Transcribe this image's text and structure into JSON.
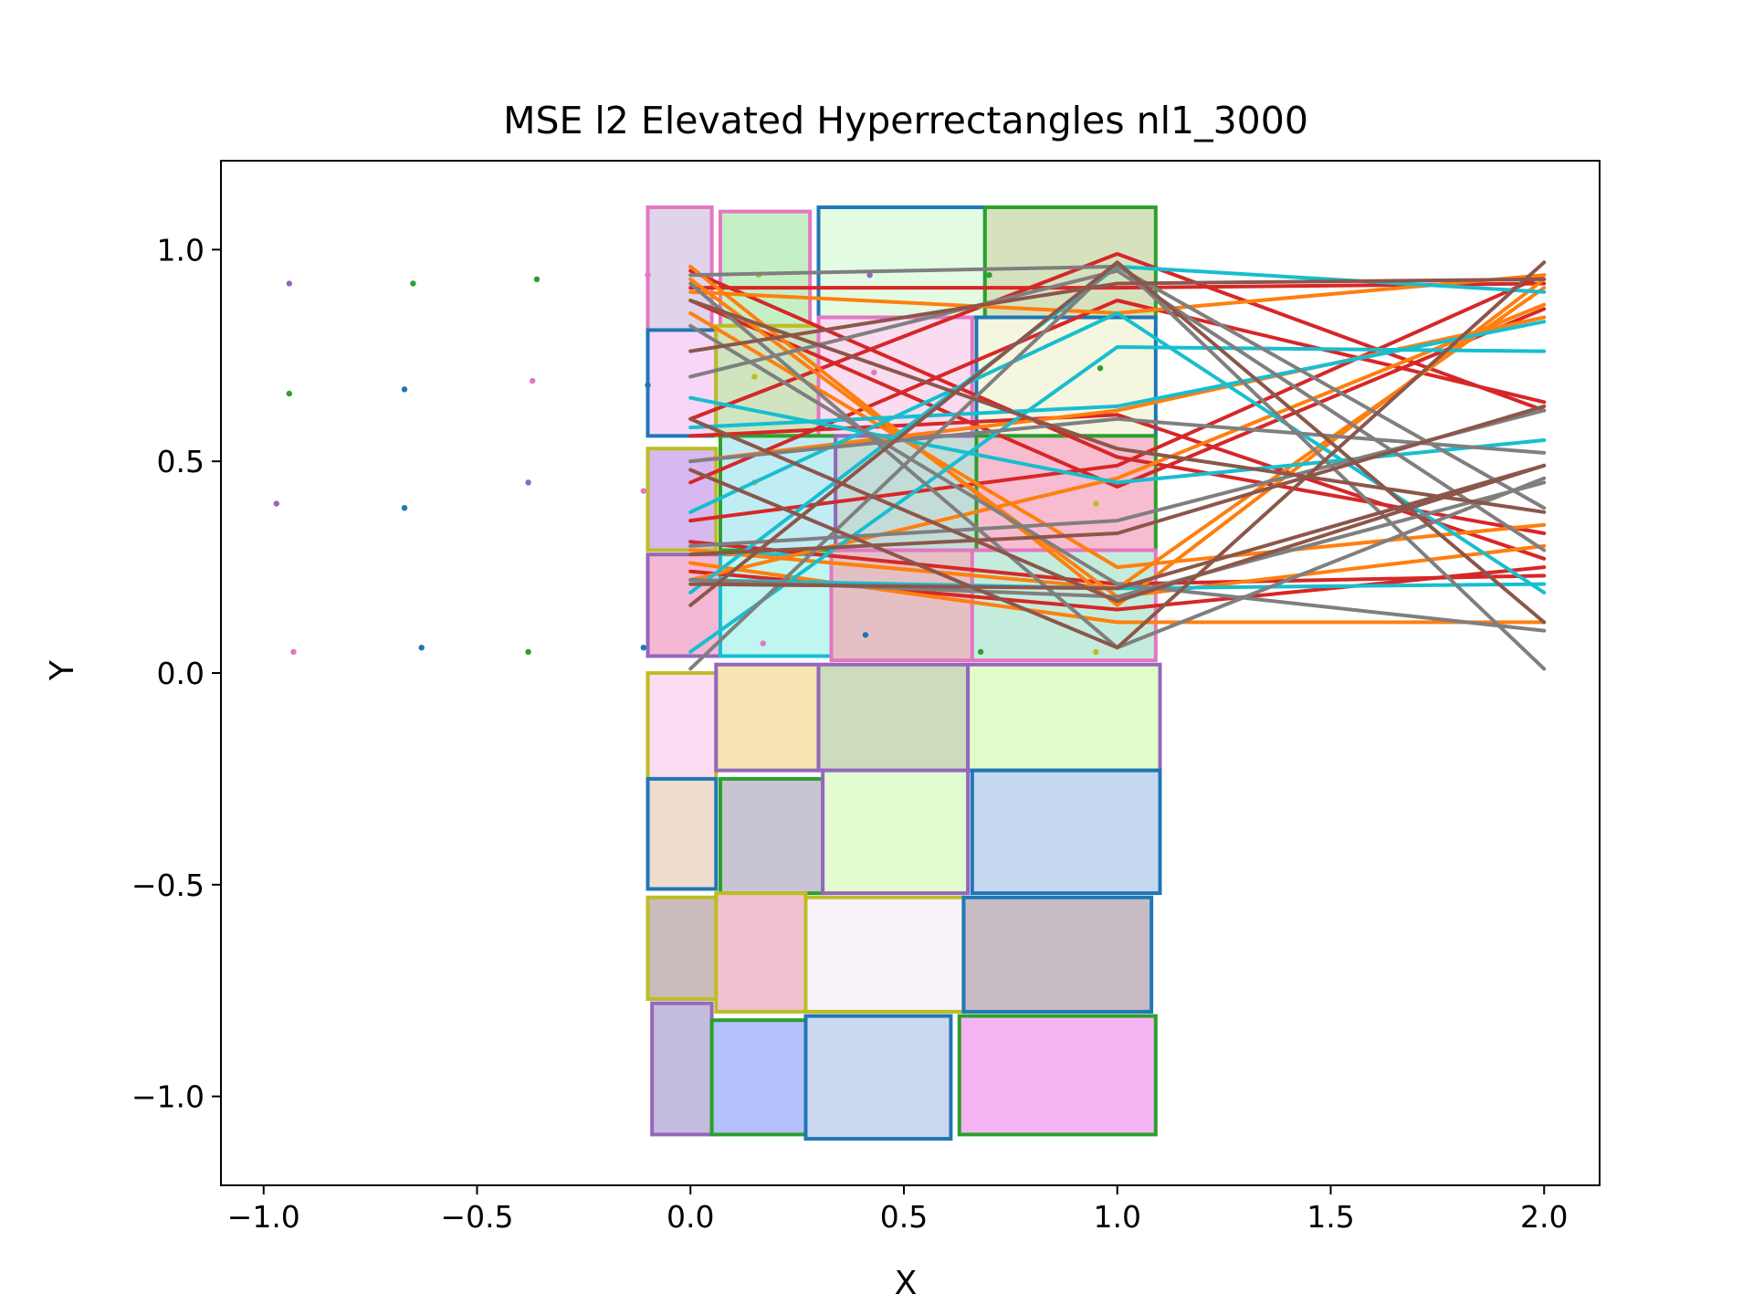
{
  "chart_data": {
    "type": "line",
    "title": "MSE l2 Elevated Hyperrectangles nl1_3000",
    "xlabel": "X",
    "ylabel": "Y",
    "xlim": [
      -1.1,
      2.13
    ],
    "ylim": [
      -1.21,
      1.21
    ],
    "x_ticks": [
      -1.0,
      -0.5,
      0.0,
      0.5,
      1.0,
      1.5,
      2.0
    ],
    "x_tick_labels": [
      "−1.0",
      "−0.5",
      "0.0",
      "0.5",
      "1.0",
      "1.5",
      "2.0"
    ],
    "y_ticks": [
      -1.0,
      -0.5,
      0.0,
      0.5,
      1.0
    ],
    "y_tick_labels": [
      "−1.0",
      "−0.5",
      "0.0",
      "0.5",
      "1.0"
    ],
    "grid": false,
    "legend": "none",
    "colors": {
      "blue": "#1f77b4",
      "orange": "#ff7f0e",
      "green": "#2ca02c",
      "red": "#d62728",
      "purple": "#9467bd",
      "brown": "#8c564b",
      "pink": "#e377c2",
      "gray": "#7f7f7f",
      "olive": "#bcbd22",
      "cyan": "#17becf"
    },
    "rectangles": [
      {
        "x0": -0.1,
        "x1": 0.05,
        "y0": 0.81,
        "y1": 1.1,
        "fill": "#e0d4ea",
        "edge": "pink"
      },
      {
        "x0": 0.07,
        "x1": 0.28,
        "y0": 0.82,
        "y1": 1.09,
        "fill": "#c5f0c5",
        "edge": "pink"
      },
      {
        "x0": 0.3,
        "x1": 0.69,
        "y0": 0.84,
        "y1": 1.1,
        "fill": "#e2fbe2",
        "edge": "blue"
      },
      {
        "x0": 0.69,
        "x1": 1.09,
        "y0": 0.84,
        "y1": 1.1,
        "fill": "#d6e2be",
        "edge": "green"
      },
      {
        "x0": -0.1,
        "x1": 0.06,
        "y0": 0.56,
        "y1": 0.81,
        "fill": "#f8d6f8",
        "edge": "blue"
      },
      {
        "x0": 0.06,
        "x1": 0.3,
        "y0": 0.56,
        "y1": 0.82,
        "fill": "#d0e4c0",
        "edge": "olive"
      },
      {
        "x0": 0.3,
        "x1": 0.66,
        "y0": 0.56,
        "y1": 0.84,
        "fill": "#f9dcf0",
        "edge": "pink"
      },
      {
        "x0": 0.67,
        "x1": 1.09,
        "y0": 0.56,
        "y1": 0.84,
        "fill": "#f4f6e0",
        "edge": "blue"
      },
      {
        "x0": -0.1,
        "x1": 0.06,
        "y0": 0.29,
        "y1": 0.53,
        "fill": "#d8b8f0",
        "edge": "olive"
      },
      {
        "x0": 0.07,
        "x1": 0.34,
        "y0": 0.29,
        "y1": 0.56,
        "fill": "#c0ecf4",
        "edge": "green"
      },
      {
        "x0": 0.34,
        "x1": 0.67,
        "y0": 0.29,
        "y1": 0.56,
        "fill": "#c4dcd8",
        "edge": "purple"
      },
      {
        "x0": 0.67,
        "x1": 1.09,
        "y0": 0.29,
        "y1": 0.56,
        "fill": "#f8bcd0",
        "edge": "green"
      },
      {
        "x0": -0.1,
        "x1": 0.07,
        "y0": 0.04,
        "y1": 0.28,
        "fill": "#f4b8d4",
        "edge": "purple"
      },
      {
        "x0": 0.07,
        "x1": 0.33,
        "y0": 0.04,
        "y1": 0.28,
        "fill": "#c0f6f0",
        "edge": "cyan"
      },
      {
        "x0": 0.33,
        "x1": 0.66,
        "y0": 0.03,
        "y1": 0.29,
        "fill": "#e4c0c4",
        "edge": "pink"
      },
      {
        "x0": 0.66,
        "x1": 1.09,
        "y0": 0.03,
        "y1": 0.29,
        "fill": "#c4ecdc",
        "edge": "pink"
      },
      {
        "x0": -0.1,
        "x1": 0.06,
        "y0": -0.25,
        "y1": 0.0,
        "fill": "#fcdcf2",
        "edge": "olive"
      },
      {
        "x0": 0.06,
        "x1": 0.3,
        "y0": -0.23,
        "y1": 0.02,
        "fill": "#f6e4b2",
        "edge": "purple"
      },
      {
        "x0": 0.3,
        "x1": 0.65,
        "y0": -0.23,
        "y1": 0.02,
        "fill": "#ccdcbc",
        "edge": "purple"
      },
      {
        "x0": 0.65,
        "x1": 1.1,
        "y0": -0.23,
        "y1": 0.02,
        "fill": "#e0fcc8",
        "edge": "purple"
      },
      {
        "x0": -0.1,
        "x1": 0.06,
        "y0": -0.51,
        "y1": -0.25,
        "fill": "#f0dccc",
        "edge": "blue"
      },
      {
        "x0": 0.07,
        "x1": 0.31,
        "y0": -0.52,
        "y1": -0.25,
        "fill": "#c8c4d4",
        "edge": "green"
      },
      {
        "x0": 0.31,
        "x1": 0.65,
        "y0": -0.52,
        "y1": -0.23,
        "fill": "#e0fcd0",
        "edge": "purple"
      },
      {
        "x0": 0.66,
        "x1": 1.1,
        "y0": -0.52,
        "y1": -0.23,
        "fill": "#c4d8f0",
        "edge": "blue"
      },
      {
        "x0": -0.1,
        "x1": 0.06,
        "y0": -0.77,
        "y1": -0.53,
        "fill": "#cabcbc",
        "edge": "olive"
      },
      {
        "x0": 0.06,
        "x1": 0.27,
        "y0": -0.8,
        "y1": -0.52,
        "fill": "#f0c0d0",
        "edge": "olive"
      },
      {
        "x0": 0.27,
        "x1": 0.64,
        "y0": -0.8,
        "y1": -0.53,
        "fill": "#f8f2f8",
        "edge": "olive"
      },
      {
        "x0": 0.64,
        "x1": 1.08,
        "y0": -0.8,
        "y1": -0.53,
        "fill": "#c8bcc4",
        "edge": "blue"
      },
      {
        "x0": -0.09,
        "x1": 0.05,
        "y0": -1.09,
        "y1": -0.78,
        "fill": "#c4bcdc",
        "edge": "purple"
      },
      {
        "x0": 0.05,
        "x1": 0.27,
        "y0": -1.09,
        "y1": -0.82,
        "fill": "#b4c0fc",
        "edge": "green"
      },
      {
        "x0": 0.27,
        "x1": 0.61,
        "y0": -1.1,
        "y1": -0.81,
        "fill": "#ccd8f0",
        "edge": "blue"
      },
      {
        "x0": 0.63,
        "x1": 1.09,
        "y0": -1.09,
        "y1": -0.81,
        "fill": "#f4b4f4",
        "edge": "green"
      }
    ],
    "points": [
      {
        "x": -0.94,
        "y": 0.92,
        "color": "purple"
      },
      {
        "x": -0.65,
        "y": 0.92,
        "color": "green"
      },
      {
        "x": -0.36,
        "y": 0.93,
        "color": "green"
      },
      {
        "x": -0.1,
        "y": 0.94,
        "color": "pink"
      },
      {
        "x": 0.16,
        "y": 0.94,
        "color": "olive"
      },
      {
        "x": 0.42,
        "y": 0.94,
        "color": "purple"
      },
      {
        "x": 0.7,
        "y": 0.94,
        "color": "green"
      },
      {
        "x": -0.94,
        "y": 0.66,
        "color": "green"
      },
      {
        "x": -0.67,
        "y": 0.67,
        "color": "blue"
      },
      {
        "x": -0.37,
        "y": 0.69,
        "color": "pink"
      },
      {
        "x": -0.1,
        "y": 0.68,
        "color": "blue"
      },
      {
        "x": 0.15,
        "y": 0.7,
        "color": "olive"
      },
      {
        "x": 0.43,
        "y": 0.71,
        "color": "pink"
      },
      {
        "x": 0.96,
        "y": 0.72,
        "color": "green"
      },
      {
        "x": -0.97,
        "y": 0.4,
        "color": "purple"
      },
      {
        "x": -0.67,
        "y": 0.39,
        "color": "blue"
      },
      {
        "x": -0.38,
        "y": 0.45,
        "color": "purple"
      },
      {
        "x": -0.11,
        "y": 0.43,
        "color": "pink"
      },
      {
        "x": 0.15,
        "y": 0.45,
        "color": "olive"
      },
      {
        "x": 0.95,
        "y": 0.4,
        "color": "olive"
      },
      {
        "x": -0.93,
        "y": 0.05,
        "color": "pink"
      },
      {
        "x": -0.63,
        "y": 0.06,
        "color": "blue"
      },
      {
        "x": -0.38,
        "y": 0.05,
        "color": "green"
      },
      {
        "x": -0.11,
        "y": 0.06,
        "color": "blue"
      },
      {
        "x": 0.17,
        "y": 0.07,
        "color": "pink"
      },
      {
        "x": 0.41,
        "y": 0.09,
        "color": "blue"
      },
      {
        "x": 0.68,
        "y": 0.05,
        "color": "green"
      },
      {
        "x": 0.95,
        "y": 0.05,
        "color": "olive"
      }
    ],
    "x": [
      0.0,
      1.0,
      2.0
    ],
    "series": [
      {
        "color": "red",
        "values": [
          0.91,
          0.91,
          0.92
        ]
      },
      {
        "color": "red",
        "values": [
          0.6,
          0.99,
          0.62
        ]
      },
      {
        "color": "red",
        "values": [
          0.36,
          0.49,
          0.94
        ]
      },
      {
        "color": "red",
        "values": [
          0.95,
          0.51,
          0.33
        ]
      },
      {
        "color": "red",
        "values": [
          0.45,
          0.88,
          0.64
        ]
      },
      {
        "color": "red",
        "values": [
          0.24,
          0.15,
          0.25
        ]
      },
      {
        "color": "red",
        "values": [
          0.56,
          0.61,
          0.27
        ]
      },
      {
        "color": "red",
        "values": [
          0.88,
          0.44,
          0.86
        ]
      },
      {
        "color": "red",
        "values": [
          0.31,
          0.21,
          0.23
        ]
      },
      {
        "color": "orange",
        "values": [
          0.96,
          0.16,
          0.93
        ]
      },
      {
        "color": "orange",
        "values": [
          0.26,
          0.12,
          0.12
        ]
      },
      {
        "color": "orange",
        "values": [
          0.9,
          0.85,
          0.94
        ]
      },
      {
        "color": "orange",
        "values": [
          0.93,
          0.18,
          0.3
        ]
      },
      {
        "color": "orange",
        "values": [
          0.22,
          0.46,
          0.87
        ]
      },
      {
        "color": "orange",
        "values": [
          0.85,
          0.25,
          0.35
        ]
      },
      {
        "color": "orange",
        "values": [
          0.5,
          0.62,
          0.84
        ]
      },
      {
        "color": "orange",
        "values": [
          0.29,
          0.2,
          0.91
        ]
      },
      {
        "color": "cyan",
        "values": [
          0.65,
          0.45,
          0.55
        ]
      },
      {
        "color": "cyan",
        "values": [
          0.05,
          0.77,
          0.76
        ]
      },
      {
        "color": "cyan",
        "values": [
          0.19,
          0.96,
          0.9
        ]
      },
      {
        "color": "cyan",
        "values": [
          0.38,
          0.85,
          0.19
        ]
      },
      {
        "color": "cyan",
        "values": [
          0.22,
          0.2,
          0.21
        ]
      },
      {
        "color": "cyan",
        "values": [
          0.58,
          0.63,
          0.83
        ]
      },
      {
        "color": "gray",
        "values": [
          0.92,
          0.06,
          0.46
        ]
      },
      {
        "color": "gray",
        "values": [
          0.3,
          0.36,
          0.62
        ]
      },
      {
        "color": "gray",
        "values": [
          0.01,
          0.97,
          0.01
        ]
      },
      {
        "color": "gray",
        "values": [
          0.7,
          0.95,
          0.29
        ]
      },
      {
        "color": "gray",
        "values": [
          0.82,
          0.21,
          0.1
        ]
      },
      {
        "color": "gray",
        "values": [
          0.5,
          0.6,
          0.52
        ]
      },
      {
        "color": "gray",
        "values": [
          0.94,
          0.96,
          0.39
        ]
      },
      {
        "color": "gray",
        "values": [
          0.22,
          0.18,
          0.45
        ]
      },
      {
        "color": "brown",
        "values": [
          0.16,
          0.97,
          0.12
        ]
      },
      {
        "color": "brown",
        "values": [
          0.48,
          0.06,
          0.97
        ]
      },
      {
        "color": "brown",
        "values": [
          0.88,
          0.53,
          0.38
        ]
      },
      {
        "color": "brown",
        "values": [
          0.28,
          0.33,
          0.63
        ]
      },
      {
        "color": "brown",
        "values": [
          0.6,
          0.17,
          0.49
        ]
      },
      {
        "color": "brown",
        "values": [
          0.76,
          0.92,
          0.93
        ]
      },
      {
        "color": "brown",
        "values": [
          0.21,
          0.2,
          0.49
        ]
      }
    ]
  }
}
